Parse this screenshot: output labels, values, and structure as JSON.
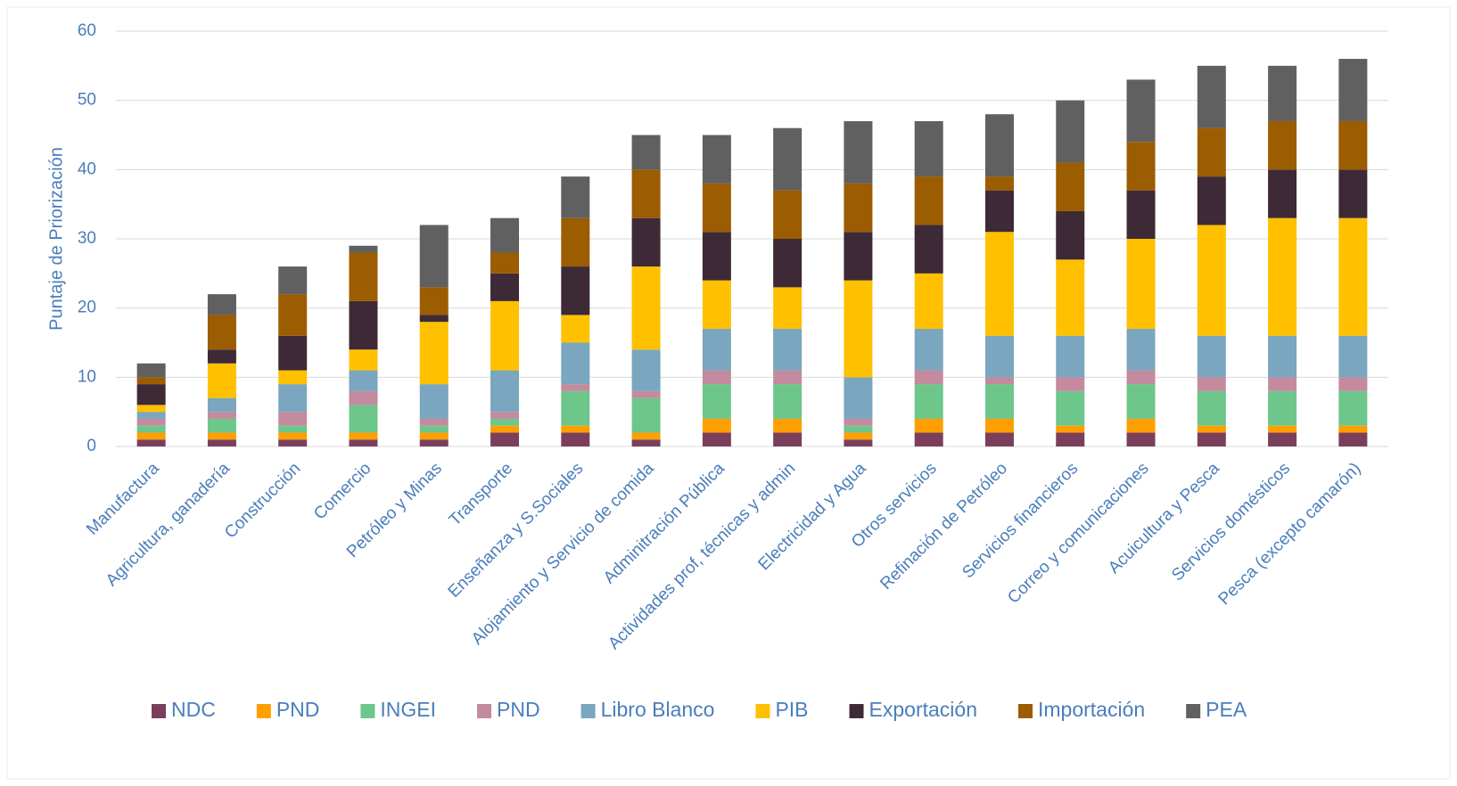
{
  "chart_data": {
    "type": "stacked_bar",
    "y_label": "Puntaje de Priorización",
    "categories": [
      "Manufactura",
      "Agricultura, ganadería",
      "Construcción",
      "Comercio",
      "Petróleo y Minas",
      "Transporte",
      "Enseñanza y S.Sociales",
      "Alojamiento y Servicio de comida",
      "Adminitración Pública",
      "Actividades prof, técnicas y admin",
      "Electricidad y Agua",
      "Otros servicios",
      "Refinación de Petróleo",
      "Servicios financieros",
      "Correo y comunicaciones",
      "Acuicultura y Pesca",
      "Servicios domésticos",
      "Pesca (excepto camarón)"
    ],
    "series": [
      {
        "name": "NDC",
        "color": "#7b3f5e",
        "values": [
          1,
          1,
          1,
          1,
          1,
          2,
          2,
          1,
          2,
          2,
          1,
          2,
          2,
          2,
          2,
          2,
          2,
          2
        ]
      },
      {
        "name": "PND",
        "color": "#ff9f00",
        "values": [
          1,
          1,
          1,
          1,
          1,
          1,
          1,
          1,
          2,
          2,
          1,
          2,
          2,
          1,
          2,
          1,
          1,
          1
        ]
      },
      {
        "name": "INGEI",
        "color": "#6dc68a",
        "values": [
          1,
          2,
          1,
          4,
          1,
          1,
          5,
          5,
          5,
          5,
          1,
          5,
          5,
          5,
          5,
          5,
          5,
          5
        ]
      },
      {
        "name": "PND",
        "color": "#c48a9e",
        "values": [
          1,
          1,
          2,
          2,
          1,
          1,
          1,
          1,
          2,
          2,
          1,
          2,
          1,
          2,
          2,
          2,
          2,
          2
        ]
      },
      {
        "name": "Libro Blanco",
        "color": "#7aa6bf",
        "values": [
          1,
          2,
          4,
          3,
          5,
          6,
          6,
          6,
          6,
          6,
          6,
          6,
          6,
          6,
          6,
          6,
          6,
          6
        ]
      },
      {
        "name": "PIB",
        "color": "#ffc000",
        "values": [
          1,
          5,
          2,
          3,
          9,
          10,
          4,
          12,
          7,
          6,
          14,
          8,
          15,
          11,
          13,
          16,
          17,
          17
        ]
      },
      {
        "name": "Exportación",
        "color": "#3d2a36",
        "values": [
          3,
          2,
          5,
          7,
          1,
          4,
          7,
          7,
          7,
          7,
          7,
          7,
          6,
          7,
          7,
          7,
          7,
          7
        ]
      },
      {
        "name": "Importación",
        "color": "#9c5c00",
        "values": [
          1,
          5,
          6,
          7,
          4,
          3,
          7,
          7,
          7,
          7,
          7,
          7,
          2,
          7,
          7,
          7,
          7,
          7
        ]
      },
      {
        "name": "PEA",
        "color": "#606060",
        "values": [
          2,
          3,
          4,
          1,
          9,
          5,
          6,
          5,
          7,
          9,
          9,
          8,
          9,
          9,
          9,
          9,
          8,
          9
        ]
      }
    ],
    "ylim": [
      0,
      60
    ],
    "yticks": [
      0,
      10,
      20,
      30,
      40,
      50,
      60
    ],
    "grid": true,
    "legend": "bottom"
  }
}
